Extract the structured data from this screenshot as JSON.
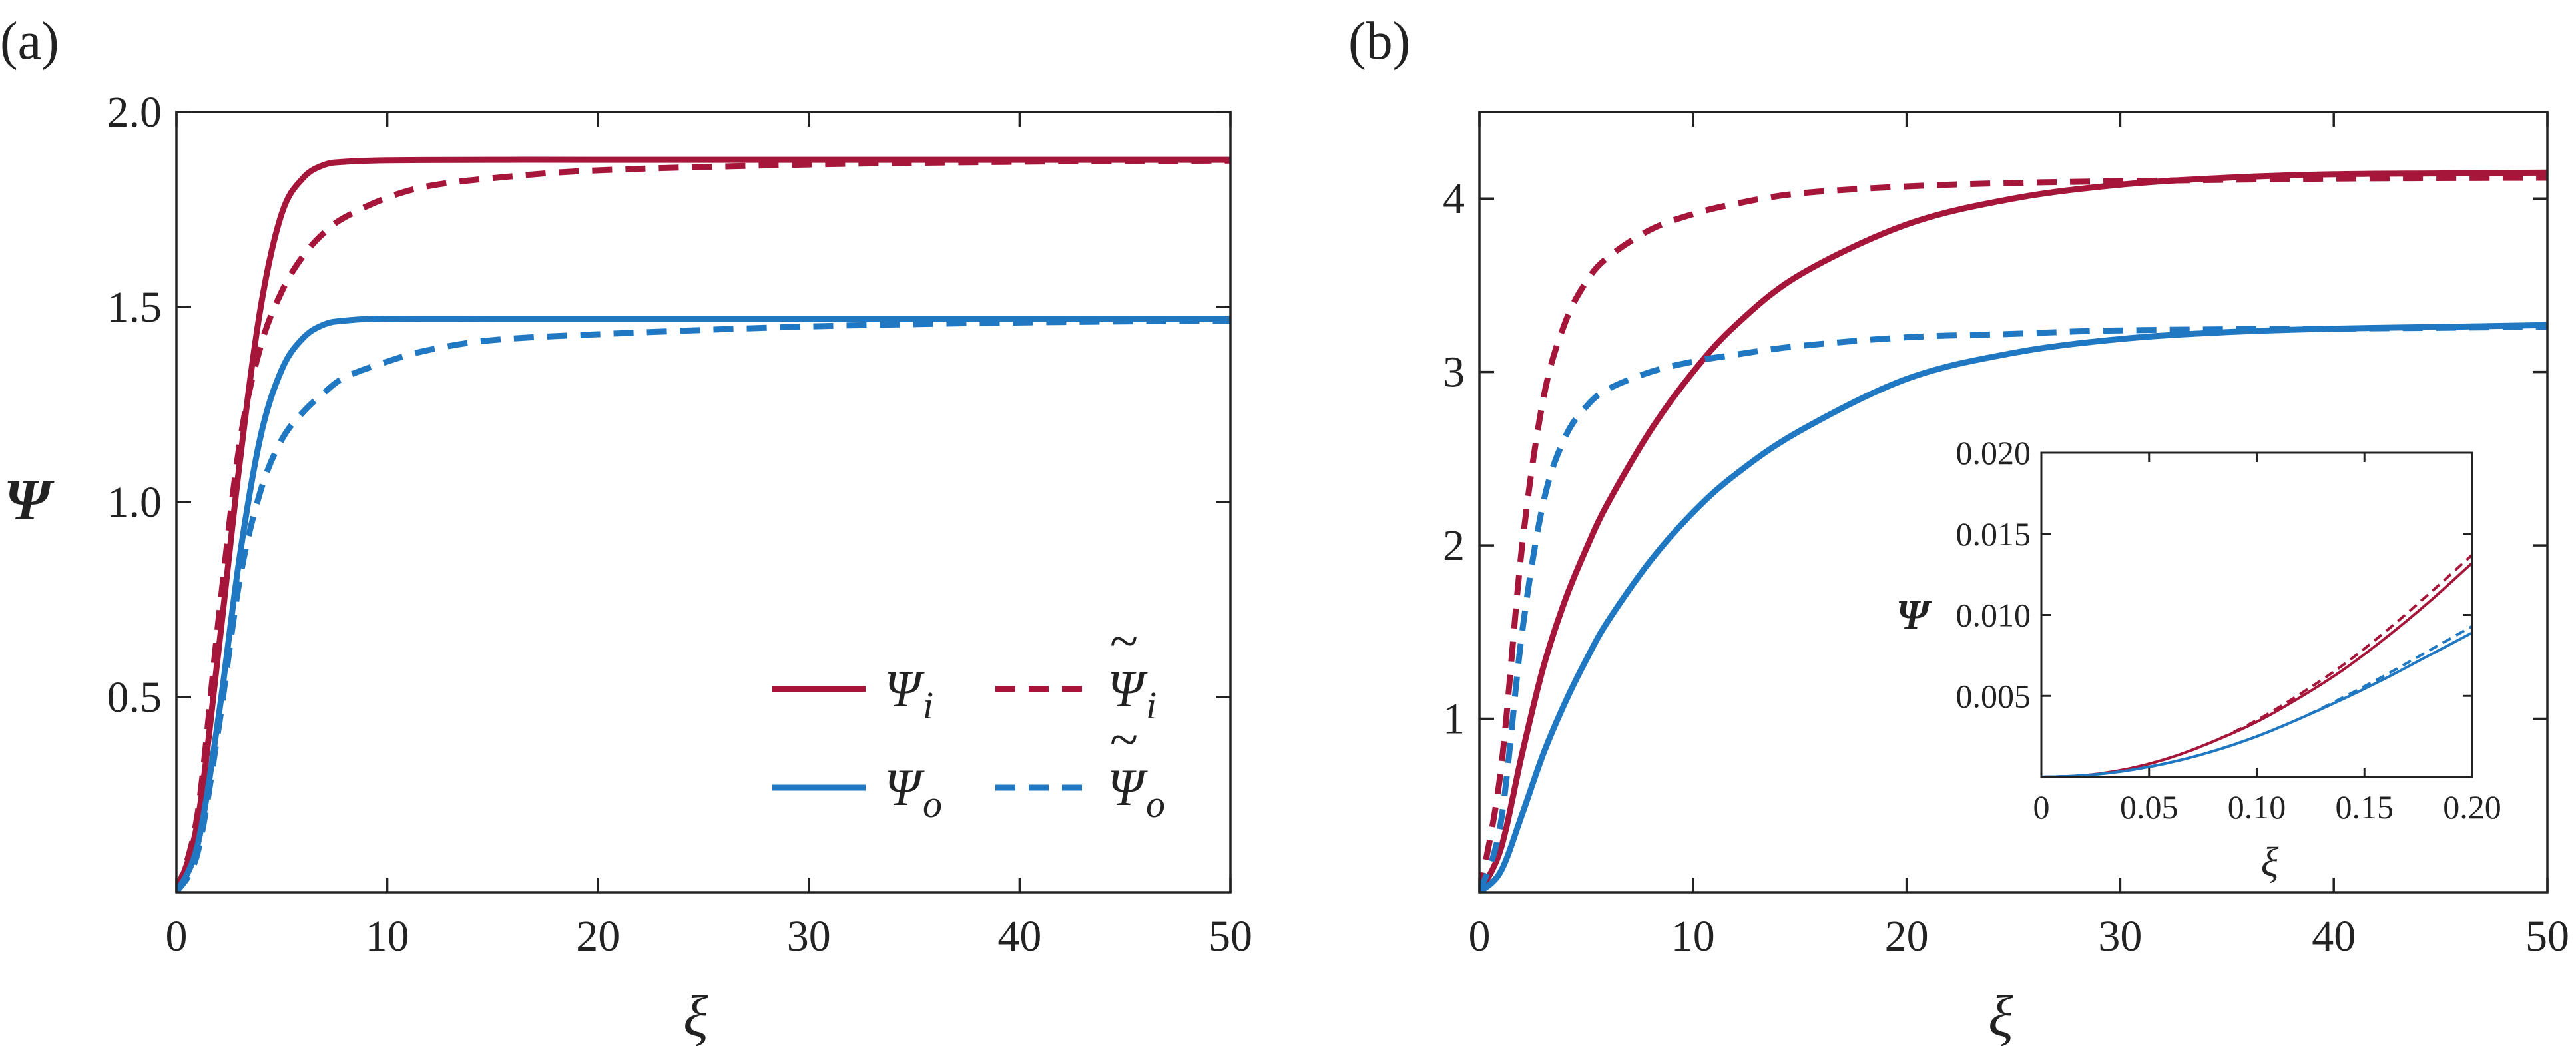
{
  "colors": {
    "red": "#a5163a",
    "blue": "#1f78c1",
    "axis": "#222222"
  },
  "chart_data": [
    {
      "type": "line",
      "panel_label": "(a)",
      "xlabel": "ξ",
      "ylabel": "Ψ",
      "xlim": [
        0,
        50
      ],
      "ylim": [
        0,
        2.0
      ],
      "xticks": [
        0,
        10,
        20,
        30,
        40,
        50
      ],
      "xtick_labels": [
        "0",
        "10",
        "20",
        "30",
        "40",
        "50"
      ],
      "yticks": [
        0.5,
        1.0,
        1.5,
        2.0
      ],
      "ytick_labels": [
        "0.5",
        "1.0",
        "1.5",
        "2.0"
      ],
      "legend": {
        "position": "lower-right",
        "entries": [
          {
            "label": "Ψ",
            "sub": "i",
            "tilde": false,
            "color": "red",
            "dash": "solid"
          },
          {
            "label": "Ψ",
            "sub": "i",
            "tilde": true,
            "color": "red",
            "dash": "dashed"
          },
          {
            "label": "Ψ",
            "sub": "o",
            "tilde": false,
            "color": "blue",
            "dash": "solid"
          },
          {
            "label": "Ψ",
            "sub": "o",
            "tilde": true,
            "color": "blue",
            "dash": "dashed"
          }
        ]
      },
      "series": [
        {
          "color": "red",
          "dash": "solid",
          "x": [
            0,
            1,
            2,
            3,
            4,
            5,
            6,
            7,
            8,
            10,
            15,
            20,
            30,
            40,
            50
          ],
          "y": [
            0,
            0.18,
            0.62,
            1.1,
            1.5,
            1.74,
            1.83,
            1.864,
            1.872,
            1.876,
            1.877,
            1.877,
            1.877,
            1.877,
            1.877
          ]
        },
        {
          "color": "red",
          "dash": "dashed",
          "x": [
            0,
            1,
            2,
            3,
            4,
            5,
            6,
            7,
            8,
            10,
            12,
            15,
            20,
            30,
            40,
            50
          ],
          "y": [
            0,
            0.2,
            0.7,
            1.15,
            1.4,
            1.54,
            1.63,
            1.69,
            1.73,
            1.78,
            1.81,
            1.83,
            1.85,
            1.865,
            1.872,
            1.875
          ]
        },
        {
          "color": "blue",
          "dash": "solid",
          "x": [
            0,
            1,
            2,
            3,
            4,
            5,
            6,
            7,
            8,
            10,
            15,
            20,
            30,
            40,
            50
          ],
          "y": [
            0,
            0.12,
            0.45,
            0.86,
            1.17,
            1.34,
            1.42,
            1.455,
            1.465,
            1.47,
            1.47,
            1.47,
            1.47,
            1.47,
            1.47
          ]
        },
        {
          "color": "blue",
          "dash": "dashed",
          "x": [
            0,
            1,
            2,
            3,
            4,
            5,
            6,
            7,
            8,
            10,
            12,
            15,
            20,
            30,
            40,
            50
          ],
          "y": [
            0,
            0.1,
            0.42,
            0.8,
            1.03,
            1.16,
            1.23,
            1.28,
            1.32,
            1.36,
            1.39,
            1.415,
            1.43,
            1.45,
            1.46,
            1.465
          ]
        }
      ]
    },
    {
      "type": "line",
      "panel_label": "(b)",
      "xlabel": "ξ",
      "xlim": [
        0,
        50
      ],
      "ylim": [
        0,
        4.5
      ],
      "xticks": [
        0,
        10,
        20,
        30,
        40,
        50
      ],
      "xtick_labels": [
        "0",
        "10",
        "20",
        "30",
        "40",
        "50"
      ],
      "yticks": [
        1,
        2,
        3,
        4
      ],
      "ytick_labels": [
        "1",
        "2",
        "3",
        "4"
      ],
      "series": [
        {
          "color": "red",
          "dash": "solid",
          "x": [
            0,
            1,
            2,
            3,
            4,
            5,
            6,
            8,
            10,
            12,
            15,
            20,
            25,
            30,
            35,
            40,
            45,
            50
          ],
          "y": [
            0,
            0.25,
            0.8,
            1.3,
            1.68,
            1.98,
            2.24,
            2.66,
            3.0,
            3.27,
            3.56,
            3.85,
            4.0,
            4.08,
            4.12,
            4.14,
            4.145,
            4.15
          ]
        },
        {
          "color": "red",
          "dash": "dashed",
          "x": [
            0,
            1,
            2,
            3,
            4,
            5,
            6,
            8,
            10,
            12,
            15,
            20,
            25,
            30,
            40,
            50
          ],
          "y": [
            0,
            0.7,
            2.0,
            2.85,
            3.28,
            3.52,
            3.66,
            3.82,
            3.91,
            3.97,
            4.03,
            4.07,
            4.09,
            4.1,
            4.115,
            4.12
          ]
        },
        {
          "color": "blue",
          "dash": "solid",
          "x": [
            0,
            1,
            2,
            3,
            4,
            5,
            6,
            8,
            10,
            12,
            15,
            20,
            25,
            30,
            35,
            40,
            45,
            50
          ],
          "y": [
            0,
            0.12,
            0.45,
            0.8,
            1.09,
            1.34,
            1.56,
            1.91,
            2.19,
            2.41,
            2.66,
            2.96,
            3.11,
            3.19,
            3.23,
            3.25,
            3.26,
            3.27
          ]
        },
        {
          "color": "blue",
          "dash": "dashed",
          "x": [
            0,
            1,
            2,
            3,
            4,
            5,
            6,
            8,
            10,
            12,
            15,
            20,
            25,
            30,
            40,
            50
          ],
          "y": [
            0,
            0.4,
            1.5,
            2.25,
            2.62,
            2.8,
            2.9,
            3.0,
            3.06,
            3.1,
            3.15,
            3.2,
            3.22,
            3.24,
            3.25,
            3.26
          ]
        }
      ],
      "inset": {
        "xlabel": "ξ",
        "ylabel": "Ψ",
        "xlim": [
          0,
          0.2
        ],
        "ylim": [
          0,
          0.02
        ],
        "xticks": [
          0,
          0.05,
          0.1,
          0.15,
          0.2
        ],
        "xtick_labels": [
          "0",
          "0.05",
          "0.10",
          "0.15",
          "0.20"
        ],
        "yticks": [
          0.005,
          0.01,
          0.015,
          0.02
        ],
        "ytick_labels": [
          "0.005",
          "0.010",
          "0.015",
          "0.020"
        ],
        "series": [
          {
            "color": "red",
            "dash": "solid",
            "x": [
              0,
              0.02,
              0.04,
              0.06,
              0.08,
              0.1,
              0.12,
              0.14,
              0.16,
              0.18,
              0.2
            ],
            "y": [
              0,
              0.0001,
              0.0005,
              0.0012,
              0.0022,
              0.0034,
              0.0049,
              0.0066,
              0.0086,
              0.0108,
              0.0132
            ]
          },
          {
            "color": "red",
            "dash": "dashed",
            "x": [
              0,
              0.02,
              0.04,
              0.06,
              0.08,
              0.1,
              0.12,
              0.14,
              0.16,
              0.18,
              0.2
            ],
            "y": [
              0,
              0.0001,
              0.0005,
              0.0012,
              0.0022,
              0.0035,
              0.0051,
              0.0069,
              0.009,
              0.0113,
              0.0137
            ]
          },
          {
            "color": "blue",
            "dash": "solid",
            "x": [
              0,
              0.02,
              0.04,
              0.06,
              0.08,
              0.1,
              0.12,
              0.14,
              0.16,
              0.18,
              0.2
            ],
            "y": [
              0,
              0.0001,
              0.0004,
              0.0009,
              0.0016,
              0.0025,
              0.0036,
              0.0048,
              0.0061,
              0.0075,
              0.0089
            ]
          },
          {
            "color": "blue",
            "dash": "dashed",
            "x": [
              0,
              0.02,
              0.04,
              0.06,
              0.08,
              0.1,
              0.12,
              0.14,
              0.16,
              0.18,
              0.2
            ],
            "y": [
              0,
              0.0001,
              0.0004,
              0.0009,
              0.0016,
              0.0025,
              0.0036,
              0.0049,
              0.0063,
              0.0078,
              0.0093
            ]
          }
        ]
      }
    }
  ]
}
